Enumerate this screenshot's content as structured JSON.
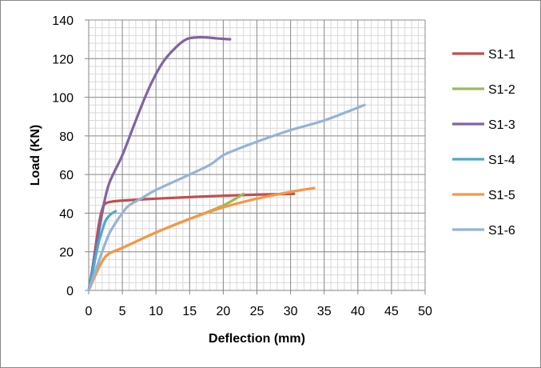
{
  "chart_data": {
    "type": "line",
    "title": "",
    "xlabel": "Deflection (mm)",
    "ylabel": "Load (KN)",
    "xlim": [
      0,
      50
    ],
    "ylim": [
      0,
      140
    ],
    "xticks": [
      0,
      5,
      10,
      15,
      20,
      25,
      30,
      35,
      40,
      45,
      50
    ],
    "yticks": [
      0,
      20,
      40,
      60,
      80,
      100,
      120,
      140
    ],
    "x_minor_step": 1,
    "y_minor_step": 4,
    "grid": true,
    "legend_position": "right",
    "series": [
      {
        "name": "S1-1",
        "color": "#C0504D",
        "points": [
          [
            0,
            0
          ],
          [
            0.5,
            10
          ],
          [
            1,
            22
          ],
          [
            1.5,
            34
          ],
          [
            2,
            42
          ],
          [
            2.5,
            45
          ],
          [
            3.5,
            46
          ],
          [
            5,
            46.5
          ],
          [
            10,
            47.5
          ],
          [
            15,
            48.3
          ],
          [
            20,
            49
          ],
          [
            25,
            49.6
          ],
          [
            30.5,
            50
          ]
        ]
      },
      {
        "name": "S1-2",
        "color": "#9BBB59",
        "points": [
          [
            0,
            0
          ],
          [
            1,
            8
          ],
          [
            2,
            15
          ],
          [
            3,
            19
          ],
          [
            5,
            22
          ],
          [
            10,
            30
          ],
          [
            15,
            37
          ],
          [
            20,
            44
          ],
          [
            23,
            50
          ]
        ]
      },
      {
        "name": "S1-3",
        "color": "#8064A2",
        "points": [
          [
            0,
            0
          ],
          [
            1,
            20
          ],
          [
            2,
            40
          ],
          [
            3,
            55
          ],
          [
            5,
            70
          ],
          [
            7,
            88
          ],
          [
            9,
            105
          ],
          [
            11,
            118
          ],
          [
            13,
            126
          ],
          [
            14.5,
            130
          ],
          [
            16,
            131
          ],
          [
            17.5,
            131
          ],
          [
            19,
            130.5
          ],
          [
            21,
            130
          ]
        ]
      },
      {
        "name": "S1-4",
        "color": "#4BACC6",
        "points": [
          [
            0,
            0
          ],
          [
            0.5,
            8
          ],
          [
            1,
            17
          ],
          [
            1.5,
            25
          ],
          [
            2,
            31
          ],
          [
            2.5,
            36
          ],
          [
            3,
            38.5
          ],
          [
            3.5,
            40
          ],
          [
            4,
            41
          ]
        ]
      },
      {
        "name": "S1-5",
        "color": "#F79646",
        "points": [
          [
            0,
            0
          ],
          [
            1,
            8
          ],
          [
            2,
            15
          ],
          [
            3,
            19
          ],
          [
            5,
            22
          ],
          [
            10,
            30
          ],
          [
            15,
            37
          ],
          [
            20,
            43
          ],
          [
            25,
            47.5
          ],
          [
            30,
            51
          ],
          [
            33.5,
            53
          ]
        ]
      },
      {
        "name": "S1-6",
        "color": "#95B3D7",
        "points": [
          [
            0,
            0
          ],
          [
            1,
            10
          ],
          [
            2,
            20
          ],
          [
            3,
            29
          ],
          [
            4,
            35
          ],
          [
            5,
            40
          ],
          [
            6,
            44
          ],
          [
            8,
            48
          ],
          [
            10,
            52
          ],
          [
            15,
            60
          ],
          [
            18,
            65
          ],
          [
            20,
            70
          ],
          [
            22,
            73
          ],
          [
            25,
            77
          ],
          [
            30,
            83
          ],
          [
            35,
            88
          ],
          [
            41,
            96
          ]
        ]
      }
    ]
  }
}
